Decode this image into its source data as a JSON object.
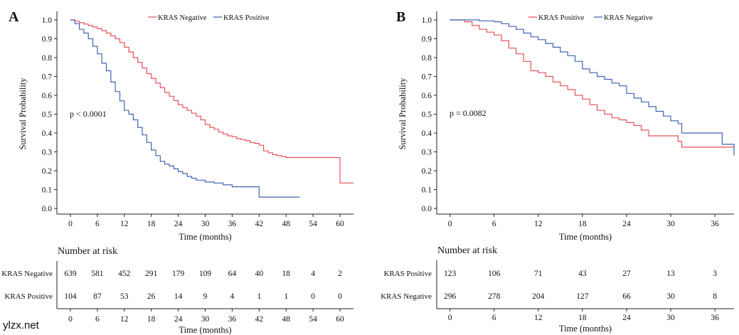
{
  "watermark": "ylzx.net",
  "colors": {
    "negative": "#e8505b",
    "positive": "#3f63b4",
    "watermark": "#9b18c8"
  },
  "chart_data": [
    {
      "type": "line",
      "subtype": "kaplan-meier",
      "panel_label": "A",
      "xlabel": "Time (months)",
      "ylabel": "Survival Probability",
      "xlim": [
        -3,
        63
      ],
      "ylim": [
        -0.03,
        1.03
      ],
      "xticks": [
        0,
        6,
        12,
        18,
        24,
        30,
        36,
        42,
        48,
        54,
        60
      ],
      "yticks": [
        "0.0",
        "0.1",
        "0.2",
        "0.3",
        "0.4",
        "0.5",
        "0.6",
        "0.7",
        "0.8",
        "0.9",
        "1.0"
      ],
      "pvalue_text": "p < 0.0001",
      "legend_position": "top-center",
      "series": [
        {
          "name": "KRAS Negative",
          "color": "#e8505b",
          "x": [
            0,
            1,
            2,
            3,
            4,
            5,
            6,
            7,
            8,
            9,
            10,
            11,
            12,
            13,
            14,
            15,
            16,
            17,
            18,
            19,
            20,
            21,
            22,
            23,
            24,
            25,
            26,
            27,
            28,
            29,
            30,
            31,
            32,
            33,
            34,
            35,
            36,
            37,
            38,
            39,
            40,
            41,
            42,
            43,
            44,
            45,
            46,
            47,
            48,
            50,
            54,
            56,
            59.9,
            60,
            63
          ],
          "y": [
            1.0,
            0.993,
            0.985,
            0.978,
            0.97,
            0.962,
            0.953,
            0.943,
            0.93,
            0.915,
            0.9,
            0.88,
            0.855,
            0.83,
            0.8,
            0.775,
            0.745,
            0.715,
            0.69,
            0.665,
            0.64,
            0.615,
            0.595,
            0.572,
            0.55,
            0.535,
            0.52,
            0.505,
            0.49,
            0.47,
            0.445,
            0.43,
            0.42,
            0.405,
            0.395,
            0.385,
            0.38,
            0.37,
            0.365,
            0.36,
            0.35,
            0.345,
            0.335,
            0.305,
            0.295,
            0.285,
            0.28,
            0.275,
            0.27,
            0.27,
            0.27,
            0.27,
            0.27,
            0.135,
            0.135
          ]
        },
        {
          "name": "KRAS Positive",
          "color": "#3f63b4",
          "x": [
            0,
            1,
            2,
            3,
            4,
            5,
            6,
            7,
            8,
            9,
            10,
            11,
            12,
            13,
            14,
            15,
            16,
            17,
            18,
            19,
            20,
            21,
            22,
            23,
            24,
            25,
            26,
            27,
            28,
            30,
            32,
            34,
            36,
            38,
            40,
            41.9,
            42,
            48,
            51
          ],
          "y": [
            1.0,
            0.98,
            0.95,
            0.93,
            0.9,
            0.86,
            0.82,
            0.77,
            0.73,
            0.67,
            0.62,
            0.57,
            0.52,
            0.5,
            0.47,
            0.43,
            0.39,
            0.35,
            0.31,
            0.28,
            0.25,
            0.235,
            0.225,
            0.21,
            0.195,
            0.185,
            0.17,
            0.16,
            0.15,
            0.14,
            0.135,
            0.125,
            0.115,
            0.115,
            0.115,
            0.115,
            0.06,
            0.06,
            0.06
          ]
        }
      ],
      "risk_table": {
        "title": "Number at risk",
        "xticks": [
          0,
          6,
          12,
          18,
          24,
          30,
          36,
          42,
          48,
          54,
          60
        ],
        "rows": [
          {
            "label": "KRAS Negative",
            "color": "#e8505b",
            "values": [
              "639",
              "581",
              "452",
              "291",
              "179",
              "109",
              "64",
              "40",
              "18",
              "4",
              "2"
            ]
          },
          {
            "label": "KRAS Positive",
            "color": "#3f63b4",
            "values": [
              "104",
              "87",
              "53",
              "26",
              "14",
              "9",
              "4",
              "1",
              "1",
              "0",
              "0"
            ]
          }
        ],
        "xlabel": "Time (months)"
      }
    },
    {
      "type": "line",
      "subtype": "kaplan-meier",
      "panel_label": "B",
      "xlabel": "Time (months)",
      "ylabel": "Survival Probability",
      "xlim": [
        -1.8,
        38.6
      ],
      "ylim": [
        -0.03,
        1.03
      ],
      "xticks": [
        0,
        6,
        12,
        18,
        24,
        30,
        36
      ],
      "yticks": [
        "0.0",
        "0.1",
        "0.2",
        "0.3",
        "0.4",
        "0.5",
        "0.6",
        "0.7",
        "0.8",
        "0.9",
        "1.0"
      ],
      "pvalue_text": "p = 0.0082",
      "legend_position": "top-center",
      "series": [
        {
          "name": "KRAS Positive",
          "color": "#e8505b",
          "x": [
            0,
            1,
            2,
            3,
            4,
            5,
            6,
            7,
            8,
            9,
            10,
            11,
            12,
            13,
            14,
            15,
            16,
            17,
            18,
            19,
            20,
            21,
            22,
            23,
            24,
            25,
            26,
            27,
            28,
            29,
            30,
            31,
            31.5,
            33,
            35,
            37,
            38.6
          ],
          "y": [
            1.0,
            1.0,
            0.99,
            0.97,
            0.95,
            0.935,
            0.92,
            0.89,
            0.85,
            0.82,
            0.78,
            0.73,
            0.72,
            0.7,
            0.67,
            0.65,
            0.63,
            0.6,
            0.58,
            0.55,
            0.52,
            0.5,
            0.48,
            0.47,
            0.455,
            0.44,
            0.415,
            0.385,
            0.385,
            0.385,
            0.385,
            0.355,
            0.325,
            0.325,
            0.325,
            0.325,
            0.325
          ]
        },
        {
          "name": "KRAS Negative",
          "color": "#3f63b4",
          "x": [
            0,
            2,
            4,
            6,
            7,
            8,
            9,
            10,
            11,
            12,
            13,
            14,
            15,
            16,
            17,
            18,
            19,
            20,
            21,
            22,
            23,
            24,
            25,
            26,
            27,
            28,
            29,
            30,
            31,
            31.5,
            33,
            35,
            36,
            37,
            38,
            38.6
          ],
          "y": [
            1.0,
            1.0,
            0.995,
            0.99,
            0.98,
            0.965,
            0.95,
            0.93,
            0.91,
            0.895,
            0.875,
            0.855,
            0.83,
            0.81,
            0.78,
            0.74,
            0.72,
            0.7,
            0.685,
            0.665,
            0.65,
            0.61,
            0.585,
            0.565,
            0.54,
            0.515,
            0.49,
            0.465,
            0.45,
            0.4,
            0.4,
            0.4,
            0.4,
            0.34,
            0.34,
            0.28
          ]
        }
      ],
      "risk_table": {
        "title": "Number at risk",
        "xticks": [
          0,
          6,
          12,
          18,
          24,
          30,
          36
        ],
        "rows": [
          {
            "label": "KRAS Positive",
            "color": "#e8505b",
            "values": [
              "123",
              "106",
              "71",
              "43",
              "27",
              "13",
              "3"
            ]
          },
          {
            "label": "KRAS Negative",
            "color": "#3f63b4",
            "values": [
              "296",
              "278",
              "204",
              "127",
              "66",
              "30",
              "8"
            ]
          }
        ],
        "xlabel": "Time (months)"
      }
    }
  ]
}
